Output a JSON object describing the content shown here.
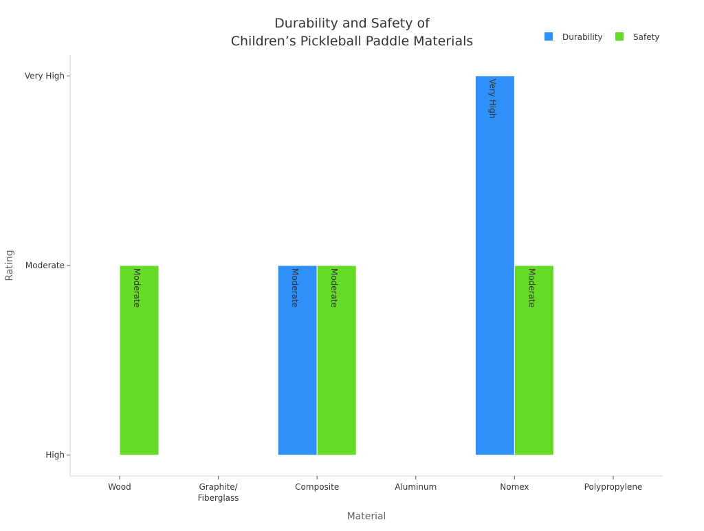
{
  "chart_data": {
    "type": "bar",
    "title_lines": [
      "Durability and Safety of",
      "Children’s Pickleball Paddle Materials"
    ],
    "xlabel": "Material",
    "ylabel": "Rating",
    "categories": [
      [
        "Wood"
      ],
      [
        "Graphite/",
        "Fiberglass"
      ],
      [
        "Composite"
      ],
      [
        "Aluminum"
      ],
      [
        "Nomex"
      ],
      [
        "Polypropylene"
      ]
    ],
    "y_ticks": [
      {
        "value": 0,
        "label": "High"
      },
      {
        "value": 1,
        "label": "Moderate"
      },
      {
        "value": 2,
        "label": "Very High"
      }
    ],
    "ylim": [
      -0.11,
      2.11
    ],
    "series": [
      {
        "name": "Durability",
        "color": "#2e90f8",
        "values": [
          null,
          null,
          1,
          null,
          2,
          null
        ],
        "labels": [
          null,
          null,
          "Moderate",
          null,
          "Very High",
          null
        ]
      },
      {
        "name": "Safety",
        "color": "#66db27",
        "values": [
          1,
          null,
          1,
          null,
          1,
          null
        ],
        "labels": [
          "Moderate",
          null,
          "Moderate",
          null,
          "Moderate",
          null
        ]
      }
    ],
    "baseline": 0,
    "legend_position": "top-right",
    "grid": false
  }
}
